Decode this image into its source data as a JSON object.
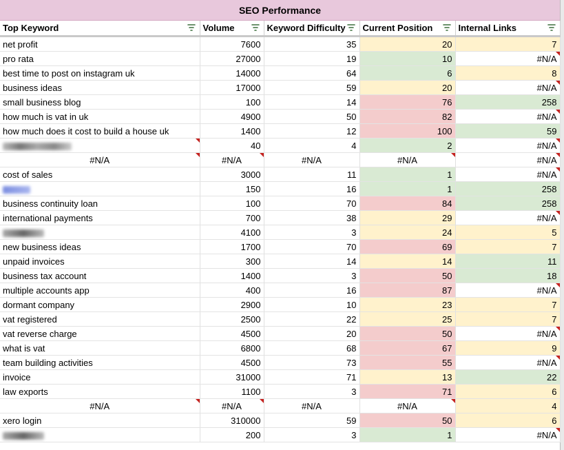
{
  "title": "SEO Performance",
  "columns": [
    "Top Keyword",
    "Volume",
    "Keyword Difficulty",
    "Current Position",
    "Internal Links"
  ],
  "colors": {
    "title_bg": "#e8c8dc",
    "green": "#d9ead3",
    "yellow": "#fff2cc",
    "red": "#f4cccc"
  },
  "rows": [
    {
      "kw": "net profit",
      "vol": "7600",
      "kd": "35",
      "pos": "20",
      "links": "7",
      "pc": "y",
      "lc": "y"
    },
    {
      "kw": "pro rata",
      "vol": "27000",
      "kd": "19",
      "pos": "10",
      "links": "#N/A",
      "pc": "g",
      "lc": "",
      "ln": true
    },
    {
      "kw": "best time to post on instagram uk",
      "vol": "14000",
      "kd": "64",
      "pos": "6",
      "links": "8",
      "pc": "g",
      "lc": "y"
    },
    {
      "kw": "business ideas",
      "vol": "17000",
      "kd": "59",
      "pos": "20",
      "links": "#N/A",
      "pc": "y",
      "lc": "",
      "ln": true
    },
    {
      "kw": "small business blog",
      "vol": "100",
      "kd": "14",
      "pos": "76",
      "links": "258",
      "pc": "r",
      "lc": "g"
    },
    {
      "kw": "how much is vat in uk",
      "vol": "4900",
      "kd": "50",
      "pos": "82",
      "links": "#N/A",
      "pc": "r",
      "lc": "",
      "ln": true
    },
    {
      "kw": "how much does it cost to build a house uk",
      "vol": "1400",
      "kd": "12",
      "pos": "100",
      "links": "59",
      "pc": "r",
      "lc": "g"
    },
    {
      "kw": "",
      "blur": "gray",
      "vol": "40",
      "kd": "4",
      "pos": "2",
      "links": "#N/A",
      "pc": "g",
      "lc": "",
      "ln": true,
      "kn": true
    },
    {
      "kw": "#N/A",
      "vol": "#N/A",
      "kd": "#N/A",
      "pos": "#N/A",
      "links": "#N/A",
      "pc": "",
      "lc": "",
      "na": true,
      "ln": true
    },
    {
      "kw": "cost of sales",
      "vol": "3000",
      "kd": "11",
      "pos": "1",
      "links": "#N/A",
      "pc": "g",
      "lc": "",
      "ln": true
    },
    {
      "kw": "",
      "blur": "blue",
      "vol": "150",
      "kd": "16",
      "pos": "1",
      "links": "258",
      "pc": "g",
      "lc": "g"
    },
    {
      "kw": "business continuity loan",
      "vol": "100",
      "kd": "70",
      "pos": "84",
      "links": "258",
      "pc": "r",
      "lc": "g"
    },
    {
      "kw": "international payments",
      "vol": "700",
      "kd": "38",
      "pos": "29",
      "links": "#N/A",
      "pc": "y",
      "lc": "",
      "ln": true
    },
    {
      "kw": "",
      "blur": "short",
      "vol": "4100",
      "kd": "3",
      "pos": "24",
      "links": "5",
      "pc": "y",
      "lc": "y"
    },
    {
      "kw": "new business ideas",
      "vol": "1700",
      "kd": "70",
      "pos": "69",
      "links": "7",
      "pc": "r",
      "lc": "y"
    },
    {
      "kw": "unpaid invoices",
      "vol": "300",
      "kd": "14",
      "pos": "14",
      "links": "11",
      "pc": "y",
      "lc": "g"
    },
    {
      "kw": "business tax account",
      "vol": "1400",
      "kd": "3",
      "pos": "50",
      "links": "18",
      "pc": "r",
      "lc": "g"
    },
    {
      "kw": "multiple accounts app",
      "vol": "400",
      "kd": "16",
      "pos": "87",
      "links": "#N/A",
      "pc": "r",
      "lc": "",
      "ln": true
    },
    {
      "kw": "dormant company",
      "vol": "2900",
      "kd": "10",
      "pos": "23",
      "links": "7",
      "pc": "y",
      "lc": "y"
    },
    {
      "kw": "vat registered",
      "vol": "2500",
      "kd": "22",
      "pos": "25",
      "links": "7",
      "pc": "y",
      "lc": "y"
    },
    {
      "kw": "vat reverse charge",
      "vol": "4500",
      "kd": "20",
      "pos": "50",
      "links": "#N/A",
      "pc": "r",
      "lc": "",
      "ln": true
    },
    {
      "kw": "what is vat",
      "vol": "6800",
      "kd": "68",
      "pos": "67",
      "links": "9",
      "pc": "r",
      "lc": "y"
    },
    {
      "kw": "team building activities",
      "vol": "4500",
      "kd": "73",
      "pos": "55",
      "links": "#N/A",
      "pc": "r",
      "lc": "",
      "ln": true
    },
    {
      "kw": "invoice",
      "vol": "31000",
      "kd": "71",
      "pos": "13",
      "links": "22",
      "pc": "y",
      "lc": "g"
    },
    {
      "kw": "law exports",
      "vol": "1100",
      "kd": "3",
      "pos": "71",
      "links": "6",
      "pc": "r",
      "lc": "y"
    },
    {
      "kw": "#N/A",
      "vol": "#N/A",
      "kd": "#N/A",
      "pos": "#N/A",
      "links": "4",
      "pc": "",
      "lc": "y",
      "na": true
    },
    {
      "kw": "xero login",
      "vol": "310000",
      "kd": "59",
      "pos": "50",
      "links": "6",
      "pc": "r",
      "lc": "y"
    },
    {
      "kw": "",
      "blur": "short",
      "vol": "200",
      "kd": "3",
      "pos": "1",
      "links": "#N/A",
      "pc": "g",
      "lc": "",
      "ln": true
    }
  ]
}
